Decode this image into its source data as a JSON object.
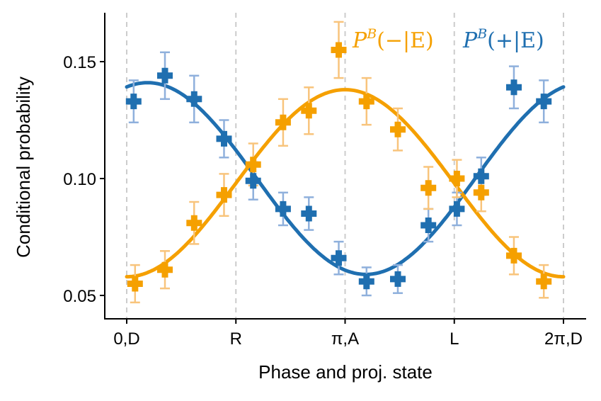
{
  "chart_data": {
    "type": "scatter",
    "xlabel": "Phase and proj. state",
    "ylabel": "Conditional probability",
    "xlim": [
      -0.05,
      6.3
    ],
    "ylim": [
      0.04,
      0.17
    ],
    "x_ticks": [
      {
        "value": 0,
        "label": "0,D"
      },
      {
        "value": 1.5708,
        "label": "R"
      },
      {
        "value": 3.1416,
        "label": "π,A"
      },
      {
        "value": 4.7124,
        "label": "L"
      },
      {
        "value": 6.2832,
        "label": "2π,D"
      }
    ],
    "y_ticks": [
      {
        "value": 0.05,
        "label": "0.05"
      },
      {
        "value": 0.1,
        "label": "0.10"
      },
      {
        "value": 0.15,
        "label": "0.15"
      }
    ],
    "grid": "vertical dashed lines at x ticks",
    "series": [
      {
        "name": "P^B(+|E)",
        "color": "#1f6fb0",
        "error_color": "#8fb0dc",
        "points": [
          {
            "x": 0.1,
            "y": 0.133,
            "err": 0.009
          },
          {
            "x": 0.55,
            "y": 0.144,
            "err": 0.01
          },
          {
            "x": 0.97,
            "y": 0.134,
            "err": 0.01
          },
          {
            "x": 1.4,
            "y": 0.117,
            "err": 0.008
          },
          {
            "x": 1.82,
            "y": 0.099,
            "err": 0.008
          },
          {
            "x": 2.25,
            "y": 0.087,
            "err": 0.007
          },
          {
            "x": 2.62,
            "y": 0.085,
            "err": 0.007
          },
          {
            "x": 3.05,
            "y": 0.066,
            "err": 0.007
          },
          {
            "x": 3.45,
            "y": 0.056,
            "err": 0.006
          },
          {
            "x": 3.9,
            "y": 0.057,
            "err": 0.006
          },
          {
            "x": 4.34,
            "y": 0.08,
            "err": 0.007
          },
          {
            "x": 4.75,
            "y": 0.087,
            "err": 0.007
          },
          {
            "x": 5.1,
            "y": 0.101,
            "err": 0.008
          },
          {
            "x": 5.57,
            "y": 0.139,
            "err": 0.009
          },
          {
            "x": 6.0,
            "y": 0.133,
            "err": 0.009
          }
        ],
        "fit": {
          "mean": 0.1,
          "amplitude": 0.041,
          "phase_offset": 0.3,
          "sign": 1
        }
      },
      {
        "name": "P^B(−|E)",
        "color": "#f5a000",
        "error_color": "#f8c47c",
        "points": [
          {
            "x": 0.12,
            "y": 0.055,
            "err": 0.008
          },
          {
            "x": 0.55,
            "y": 0.061,
            "err": 0.008
          },
          {
            "x": 0.97,
            "y": 0.081,
            "err": 0.009
          },
          {
            "x": 1.4,
            "y": 0.093,
            "err": 0.009
          },
          {
            "x": 1.82,
            "y": 0.106,
            "err": 0.009
          },
          {
            "x": 2.25,
            "y": 0.124,
            "err": 0.01
          },
          {
            "x": 2.62,
            "y": 0.129,
            "err": 0.01
          },
          {
            "x": 3.05,
            "y": 0.155,
            "err": 0.012
          },
          {
            "x": 3.45,
            "y": 0.133,
            "err": 0.01
          },
          {
            "x": 3.9,
            "y": 0.121,
            "err": 0.009
          },
          {
            "x": 4.34,
            "y": 0.096,
            "err": 0.009
          },
          {
            "x": 4.75,
            "y": 0.1,
            "err": 0.008
          },
          {
            "x": 5.1,
            "y": 0.094,
            "err": 0.008
          },
          {
            "x": 5.57,
            "y": 0.067,
            "err": 0.008
          },
          {
            "x": 6.0,
            "y": 0.056,
            "err": 0.007
          }
        ],
        "fit": {
          "mean": 0.098,
          "amplitude": 0.04,
          "phase_offset": 0.0,
          "sign": -1
        }
      }
    ],
    "legend": {
      "placement": "top-right",
      "entries": [
        {
          "prefix": "P",
          "sup": "B",
          "suffix": "(−|E)",
          "color": "#f5a000"
        },
        {
          "prefix": "P",
          "sup": "B",
          "suffix": "(+|E)",
          "color": "#1f6fb0"
        }
      ]
    }
  }
}
